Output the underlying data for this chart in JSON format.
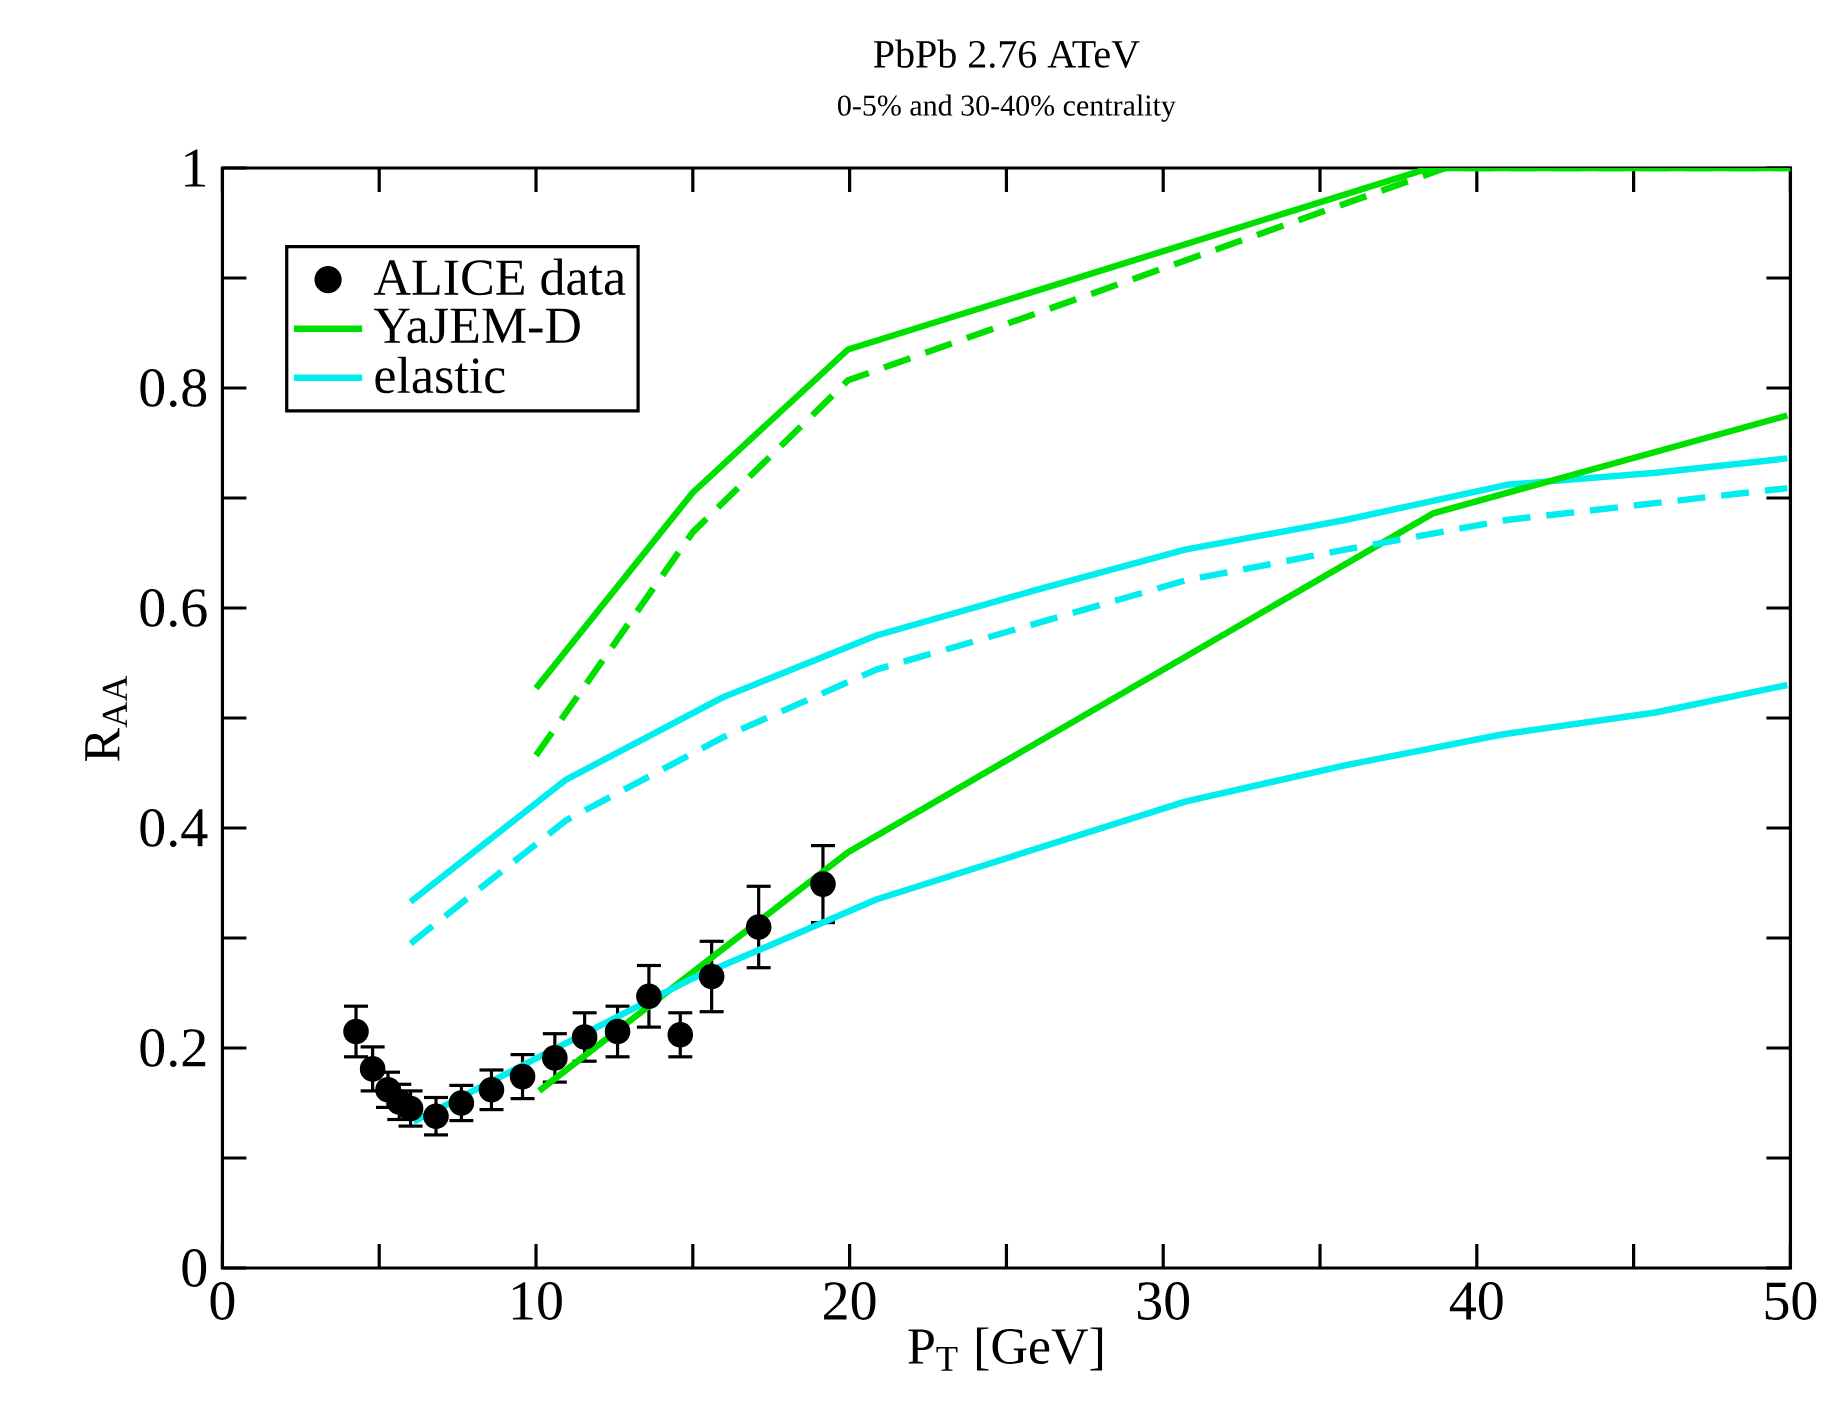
{
  "chart_data": {
    "type": "line",
    "title": "PbPb 2.76 ATeV",
    "subtitle": "0-5% and 30-40% centrality",
    "xlabel": "P$_{T}$ [GeV]",
    "ylabel": "R$_{AA}$",
    "xlim": [
      0,
      50
    ],
    "ylim": [
      0,
      1
    ],
    "xticks": [
      0,
      {
        "value": 5,
        "label": null
      },
      10,
      {
        "value": 15,
        "label": null
      },
      20,
      {
        "value": 25,
        "label": null
      },
      30,
      {
        "value": 35,
        "label": null
      },
      40,
      {
        "value": 45,
        "label": null
      },
      50
    ],
    "yticks": [
      0,
      {
        "value": 0.1,
        "label": null
      },
      0.2,
      {
        "value": 0.3,
        "label": null
      },
      0.4,
      {
        "value": 0.5,
        "label": null
      },
      0.6,
      {
        "value": 0.7,
        "label": null
      },
      0.8,
      {
        "value": 0.9,
        "label": null
      },
      1
    ],
    "legend": "top left",
    "series": [
      {
        "name": "ALICE data",
        "type": "scatter",
        "marker": "circle",
        "color": "#000000",
        "x": [
          4.26,
          4.79,
          5.28,
          5.64,
          6.0,
          6.81,
          7.62,
          8.58,
          9.57,
          10.6,
          11.55,
          12.6,
          13.6,
          14.6,
          15.6,
          17.1,
          19.15
        ],
        "values": [
          0.215,
          0.181,
          0.162,
          0.151,
          0.145,
          0.138,
          0.15,
          0.162,
          0.174,
          0.191,
          0.21,
          0.215,
          0.247,
          0.212,
          0.265,
          0.31,
          0.349
        ],
        "errors": [
          0.023,
          0.02,
          0.016,
          0.016,
          0.016,
          0.017,
          0.016,
          0.018,
          0.02,
          0.022,
          0.022,
          0.023,
          0.028,
          0.02,
          0.032,
          0.037,
          0.035
        ]
      },
      {
        "name": "YaJEM-D",
        "color": "#00e000",
        "x": [
          10,
          15,
          19.95,
          38.5,
          50
        ],
        "values": [
          0.527,
          0.705,
          0.835,
          1.0,
          1.0
        ]
      },
      {
        "name": "elastic",
        "color": "#00eeee",
        "x": [
          6.0,
          10.96,
          15.97,
          20.85,
          25.9,
          30.7,
          35.8,
          40.95,
          45.7,
          49.9
        ],
        "values": [
          0.333,
          0.444,
          0.519,
          0.575,
          0.616,
          0.653,
          0.68,
          0.712,
          0.723,
          0.736
        ]
      },
      {
        "line_style": "dashed",
        "color": "#00e000",
        "x": [
          10,
          15,
          19.95,
          39,
          50
        ],
        "values": [
          0.466,
          0.669,
          0.807,
          1.0,
          1.0
        ]
      },
      {
        "color": "#00e000",
        "x": [
          10.1,
          19.95,
          38.6,
          49.9
        ],
        "values": [
          0.161,
          0.378,
          0.686,
          0.775
        ]
      },
      {
        "line_style": "dashed",
        "color": "#00eeee",
        "x": [
          6.0,
          10.96,
          16.0,
          20.85,
          30.7,
          35.8,
          40.95,
          49.9
        ],
        "values": [
          0.295,
          0.407,
          0.483,
          0.544,
          0.625,
          0.653,
          0.68,
          0.709
        ]
      },
      {
        "color": "#00eeee",
        "x": [
          6.1,
          10.1,
          14.9,
          20.85,
          30.7,
          35.8,
          40.8,
          45.7,
          49.9
        ],
        "values": [
          0.133,
          0.192,
          0.262,
          0.335,
          0.424,
          0.457,
          0.485,
          0.505,
          0.53
        ]
      }
    ]
  }
}
